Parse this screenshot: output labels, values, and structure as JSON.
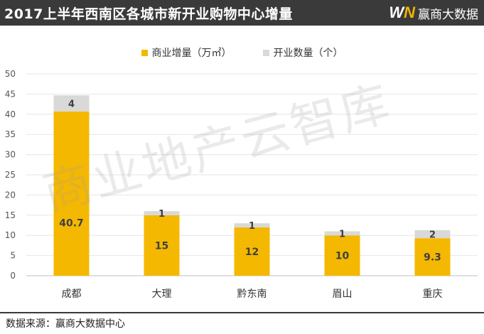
{
  "header": {
    "title": "2017上半年西南区各城市新开业购物中心增量",
    "brand_logo": "WN",
    "brand_name": "赢商大数据"
  },
  "watermark": "商业地产云智库",
  "footer": {
    "source_text": "数据来源：赢商大数据中心"
  },
  "colors": {
    "header_bg": "#3a3a3a",
    "area_series": "#f5b800",
    "count_series": "#d9d9d9",
    "axis": "#d9d9d9"
  },
  "chart_data": {
    "type": "bar",
    "stacked": true,
    "categories": [
      "成都",
      "大理",
      "黔东南",
      "眉山",
      "重庆"
    ],
    "series": [
      {
        "name": "商业增量（万㎡）",
        "values": [
          40.7,
          15,
          12,
          10,
          9.3
        ],
        "color": "#f5b800",
        "labels": [
          "40.7",
          "15",
          "12",
          "10",
          "9.3"
        ]
      },
      {
        "name": "开业数量（个）",
        "values": [
          4,
          1,
          1,
          1,
          2
        ],
        "color": "#d9d9d9",
        "labels": [
          "4",
          "1",
          "1",
          "1",
          "2"
        ]
      }
    ],
    "ylim": [
      0,
      50
    ],
    "yticks": [
      "0",
      "5",
      "10",
      "15",
      "20",
      "25",
      "30",
      "35",
      "40",
      "45",
      "50"
    ],
    "grid": true,
    "legend": "top-center",
    "title": "",
    "xlabel": "",
    "ylabel": ""
  }
}
